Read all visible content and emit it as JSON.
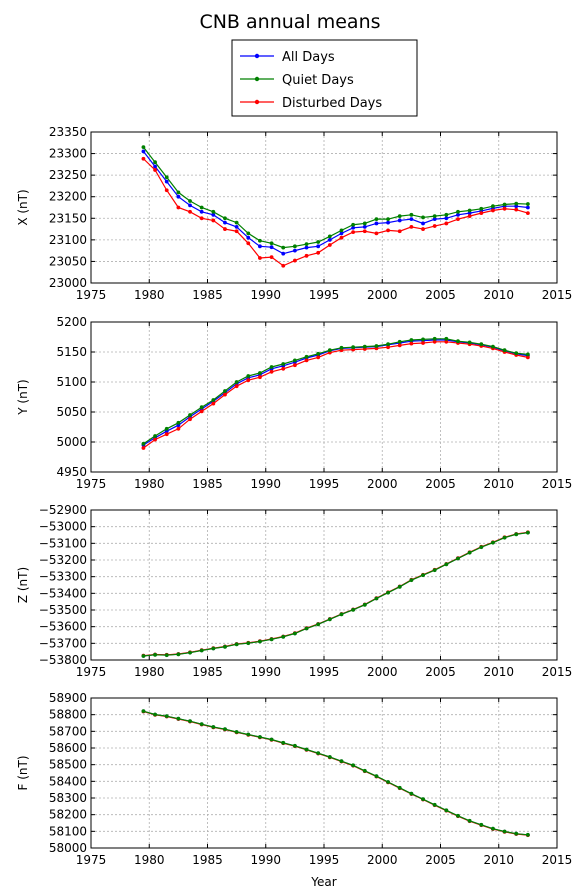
{
  "figure": {
    "title": "CNB annual means",
    "xlabel": "Year"
  },
  "legend": {
    "placement": "top-center",
    "entries": [
      {
        "label": "All Days",
        "color": "#0000ff"
      },
      {
        "label": "Quiet Days",
        "color": "#008000"
      },
      {
        "label": "Disturbed Days",
        "color": "#ff0000"
      }
    ]
  },
  "chart_data": [
    {
      "type": "line",
      "id": "X",
      "ylabel": "X (nT)",
      "xlim": [
        1975,
        2015
      ],
      "ylim": [
        23000,
        23350
      ],
      "xticks": [
        1975,
        1980,
        1985,
        1990,
        1995,
        2000,
        2005,
        2010,
        2015
      ],
      "yticks": [
        23000,
        23050,
        23100,
        23150,
        23200,
        23250,
        23300,
        23350
      ],
      "grid": true,
      "x": [
        1979.5,
        1980.5,
        1981.5,
        1982.5,
        1983.5,
        1984.5,
        1985.5,
        1986.5,
        1987.5,
        1988.5,
        1989.5,
        1990.5,
        1991.5,
        1992.5,
        1993.5,
        1994.5,
        1995.5,
        1996.5,
        1997.5,
        1998.5,
        1999.5,
        2000.5,
        2001.5,
        2002.5,
        2003.5,
        2004.5,
        2005.5,
        2006.5,
        2007.5,
        2008.5,
        2009.5,
        2010.5,
        2011.5,
        2012.5
      ],
      "series": [
        {
          "name": "All Days",
          "values": [
            23305,
            23270,
            23235,
            23200,
            23180,
            23165,
            23158,
            23140,
            23130,
            23105,
            23085,
            23083,
            23068,
            23075,
            23082,
            23085,
            23100,
            23115,
            23128,
            23130,
            23138,
            23140,
            23145,
            23148,
            23138,
            23148,
            23150,
            23158,
            23162,
            23167,
            23173,
            23178,
            23178,
            23175
          ]
        },
        {
          "name": "Quiet Days",
          "values": [
            23315,
            23280,
            23245,
            23210,
            23190,
            23175,
            23165,
            23150,
            23140,
            23115,
            23098,
            23092,
            23082,
            23085,
            23090,
            23095,
            23108,
            23122,
            23135,
            23138,
            23148,
            23148,
            23155,
            23158,
            23152,
            23155,
            23158,
            23165,
            23168,
            23172,
            23178,
            23182,
            23184,
            23183
          ]
        },
        {
          "name": "Disturbed Days",
          "values": [
            23288,
            23262,
            23215,
            23175,
            23165,
            23150,
            23145,
            23125,
            23120,
            23092,
            23058,
            23060,
            23040,
            23052,
            23063,
            23070,
            23088,
            23105,
            23118,
            23120,
            23115,
            23122,
            23120,
            23130,
            23125,
            23132,
            23138,
            23148,
            23155,
            23162,
            23168,
            23172,
            23170,
            23162
          ]
        }
      ]
    },
    {
      "type": "line",
      "id": "Y",
      "ylabel": "Y (nT)",
      "xlim": [
        1975,
        2015
      ],
      "ylim": [
        4950,
        5200
      ],
      "xticks": [
        1975,
        1980,
        1985,
        1990,
        1995,
        2000,
        2005,
        2010,
        2015
      ],
      "yticks": [
        4950,
        5000,
        5050,
        5100,
        5150,
        5200
      ],
      "grid": true,
      "x": [
        1979.5,
        1980.5,
        1981.5,
        1982.5,
        1983.5,
        1984.5,
        1985.5,
        1986.5,
        1987.5,
        1988.5,
        1989.5,
        1990.5,
        1991.5,
        1992.5,
        1993.5,
        1994.5,
        1995.5,
        1996.5,
        1997.5,
        1998.5,
        1999.5,
        2000.5,
        2001.5,
        2002.5,
        2003.5,
        2004.5,
        2005.5,
        2006.5,
        2007.5,
        2008.5,
        2009.5,
        2010.5,
        2011.5,
        2012.5
      ],
      "series": [
        {
          "name": "All Days",
          "values": [
            4995,
            5007,
            5018,
            5028,
            5042,
            5055,
            5068,
            5082,
            5097,
            5107,
            5112,
            5122,
            5127,
            5133,
            5140,
            5145,
            5152,
            5156,
            5157,
            5158,
            5159,
            5162,
            5165,
            5168,
            5169,
            5170,
            5170,
            5167,
            5165,
            5162,
            5158,
            5152,
            5147,
            5144
          ]
        },
        {
          "name": "Quiet Days",
          "values": [
            4997,
            5010,
            5022,
            5032,
            5045,
            5058,
            5070,
            5085,
            5100,
            5110,
            5115,
            5125,
            5130,
            5136,
            5142,
            5147,
            5153,
            5157,
            5158,
            5159,
            5160,
            5163,
            5167,
            5170,
            5171,
            5172,
            5172,
            5168,
            5166,
            5163,
            5159,
            5153,
            5148,
            5146
          ]
        },
        {
          "name": "Disturbed Days",
          "values": [
            4990,
            5004,
            5013,
            5022,
            5038,
            5051,
            5064,
            5079,
            5093,
            5103,
            5108,
            5117,
            5122,
            5128,
            5136,
            5141,
            5149,
            5153,
            5154,
            5155,
            5156,
            5158,
            5161,
            5164,
            5165,
            5167,
            5167,
            5165,
            5163,
            5160,
            5156,
            5150,
            5145,
            5141
          ]
        }
      ]
    },
    {
      "type": "line",
      "id": "Z",
      "ylabel": "Z (nT)",
      "xlim": [
        1975,
        2015
      ],
      "ylim": [
        -53800,
        -52900
      ],
      "xticks": [
        1975,
        1980,
        1985,
        1990,
        1995,
        2000,
        2005,
        2010,
        2015
      ],
      "yticks": [
        -53800,
        -53700,
        -53600,
        -53500,
        -53400,
        -53300,
        -53200,
        -53100,
        -53000,
        -52900
      ],
      "grid": true,
      "x": [
        1979.5,
        1980.5,
        1981.5,
        1982.5,
        1983.5,
        1984.5,
        1985.5,
        1986.5,
        1987.5,
        1988.5,
        1989.5,
        1990.5,
        1991.5,
        1992.5,
        1993.5,
        1994.5,
        1995.5,
        1996.5,
        1997.5,
        1998.5,
        1999.5,
        2000.5,
        2001.5,
        2002.5,
        2003.5,
        2004.5,
        2005.5,
        2006.5,
        2007.5,
        2008.5,
        2009.5,
        2010.5,
        2011.5,
        2012.5
      ],
      "series": [
        {
          "name": "All Days",
          "values": [
            -53775,
            -53768,
            -53770,
            -53765,
            -53755,
            -53742,
            -53730,
            -53720,
            -53705,
            -53698,
            -53688,
            -53675,
            -53660,
            -53640,
            -53610,
            -53585,
            -53555,
            -53525,
            -53498,
            -53468,
            -53430,
            -53395,
            -53360,
            -53320,
            -53290,
            -53260,
            -53225,
            -53190,
            -53155,
            -53122,
            -53095,
            -53065,
            -53045,
            -53035
          ]
        },
        {
          "name": "Quiet Days",
          "values": [
            -53776,
            -53769,
            -53771,
            -53766,
            -53756,
            -53743,
            -53731,
            -53721,
            -53706,
            -53699,
            -53689,
            -53676,
            -53661,
            -53641,
            -53611,
            -53586,
            -53556,
            -53526,
            -53499,
            -53469,
            -53431,
            -53396,
            -53361,
            -53321,
            -53291,
            -53261,
            -53226,
            -53191,
            -53156,
            -53123,
            -53096,
            -53066,
            -53046,
            -53036
          ]
        },
        {
          "name": "Disturbed Days",
          "values": [
            -53774,
            -53767,
            -53769,
            -53764,
            -53754,
            -53741,
            -53729,
            -53719,
            -53704,
            -53697,
            -53687,
            -53674,
            -53659,
            -53639,
            -53609,
            -53584,
            -53554,
            -53524,
            -53497,
            -53467,
            -53429,
            -53394,
            -53359,
            -53319,
            -53289,
            -53259,
            -53224,
            -53189,
            -53154,
            -53121,
            -53094,
            -53064,
            -53044,
            -53034
          ]
        }
      ]
    },
    {
      "type": "line",
      "id": "F",
      "ylabel": "F (nT)",
      "xlim": [
        1975,
        2015
      ],
      "ylim": [
        58000,
        58900
      ],
      "xticks": [
        1975,
        1980,
        1985,
        1990,
        1995,
        2000,
        2005,
        2010,
        2015
      ],
      "yticks": [
        58000,
        58100,
        58200,
        58300,
        58400,
        58500,
        58600,
        58700,
        58800,
        58900
      ],
      "grid": true,
      "x": [
        1979.5,
        1980.5,
        1981.5,
        1982.5,
        1983.5,
        1984.5,
        1985.5,
        1986.5,
        1987.5,
        1988.5,
        1989.5,
        1990.5,
        1991.5,
        1992.5,
        1993.5,
        1994.5,
        1995.5,
        1996.5,
        1997.5,
        1998.5,
        1999.5,
        2000.5,
        2001.5,
        2002.5,
        2003.5,
        2004.5,
        2005.5,
        2006.5,
        2007.5,
        2008.5,
        2009.5,
        2010.5,
        2011.5,
        2012.5
      ],
      "series": [
        {
          "name": "All Days",
          "values": [
            58820,
            58800,
            58790,
            58775,
            58760,
            58742,
            58725,
            58712,
            58695,
            58680,
            58665,
            58650,
            58630,
            58612,
            58590,
            58568,
            58545,
            58520,
            58495,
            58462,
            58430,
            58395,
            58360,
            58325,
            58292,
            58258,
            58225,
            58192,
            58162,
            58138,
            58115,
            58098,
            58085,
            58078
          ]
        },
        {
          "name": "Quiet Days",
          "values": [
            58821,
            58801,
            58791,
            58776,
            58761,
            58743,
            58726,
            58713,
            58696,
            58681,
            58666,
            58651,
            58631,
            58613,
            58591,
            58569,
            58546,
            58521,
            58496,
            58463,
            58431,
            58396,
            58361,
            58326,
            58293,
            58259,
            58226,
            58193,
            58163,
            58139,
            58116,
            58099,
            58086,
            58079
          ]
        },
        {
          "name": "Disturbed Days",
          "values": [
            58819,
            58799,
            58789,
            58774,
            58759,
            58741,
            58724,
            58711,
            58694,
            58679,
            58664,
            58649,
            58629,
            58611,
            58589,
            58567,
            58544,
            58519,
            58494,
            58461,
            58429,
            58394,
            58359,
            58324,
            58291,
            58257,
            58224,
            58191,
            58161,
            58137,
            58114,
            58097,
            58084,
            58077
          ]
        }
      ]
    }
  ]
}
